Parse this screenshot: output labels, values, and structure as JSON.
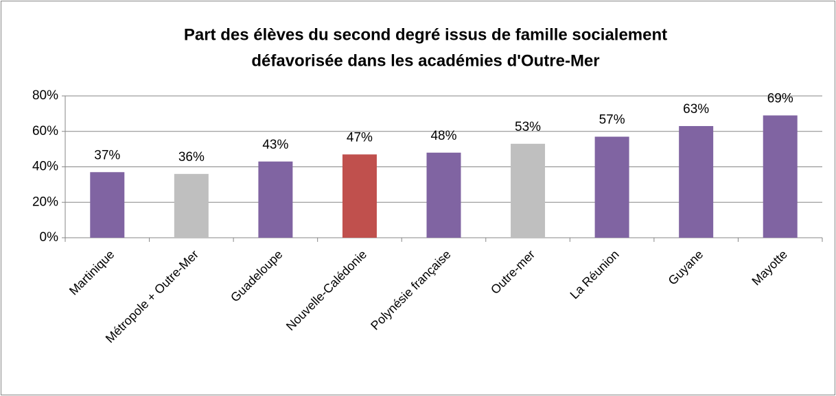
{
  "chart_data": {
    "type": "bar",
    "title": [
      "Part des élèves du second degré issus de famille socialement",
      "défavorisée dans les académies d'Outre-Mer"
    ],
    "categories": [
      "Martinique",
      "Métropole + Outre-Mer",
      "Guadeloupe",
      "Nouvelle-Calédonie",
      "Polynésie française",
      "Outre-mer",
      "La Réunion",
      "Guyane",
      "Mayotte"
    ],
    "values": [
      37,
      36,
      43,
      47,
      48,
      53,
      57,
      63,
      69
    ],
    "value_labels": [
      "37%",
      "36%",
      "43%",
      "47%",
      "48%",
      "53%",
      "57%",
      "63%",
      "69%"
    ],
    "colors": [
      "#8064a2",
      "#bfbfbf",
      "#8064a2",
      "#c0504d",
      "#8064a2",
      "#bfbfbf",
      "#8064a2",
      "#8064a2",
      "#8064a2"
    ],
    "ylim": [
      0,
      80
    ],
    "yticks": [
      {
        "value": 0,
        "label": "0%"
      },
      {
        "value": 20,
        "label": "20%"
      },
      {
        "value": 40,
        "label": "40%"
      },
      {
        "value": 60,
        "label": "60%"
      },
      {
        "value": 80,
        "label": "80%"
      }
    ],
    "grid": true
  }
}
